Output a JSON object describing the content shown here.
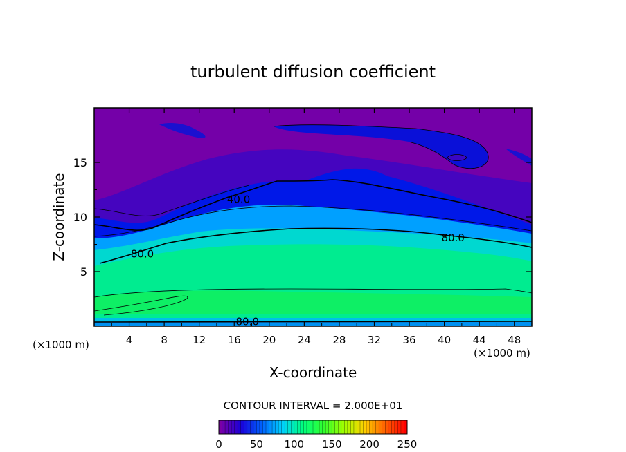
{
  "chart_data": {
    "type": "heatmap",
    "title": "turbulent diffusion coefficient",
    "xlabel": "X-coordinate",
    "ylabel": "Z-coordinate",
    "x_unit_left": "(×1000 m)",
    "x_unit_right": "(×1000 m)",
    "xlim": [
      0,
      50
    ],
    "ylim": [
      0,
      20
    ],
    "xticks": [
      4,
      8,
      12,
      16,
      20,
      24,
      28,
      32,
      36,
      40,
      44,
      48
    ],
    "yticks": [
      5,
      10,
      15
    ],
    "contour_interval_text": "CONTOUR INTERVAL = 2.000E+01",
    "contour_labels": [
      {
        "text": "40.0",
        "x": 16.5,
        "z": 11.6
      },
      {
        "text": "80.0",
        "x": 5.5,
        "z": 6.6
      },
      {
        "text": "80.0",
        "x": 41.0,
        "z": 8.1
      },
      {
        "text": "80.0",
        "x": 17.5,
        "z": 0.4
      }
    ],
    "colorbar": {
      "min": 0,
      "max": 250,
      "ticks": [
        0,
        50,
        100,
        150,
        200,
        250
      ],
      "colors": [
        "#7a00a6",
        "#1a00d8",
        "#0060ff",
        "#00d0ff",
        "#00ff80",
        "#30ff30",
        "#a0ff00",
        "#ffd000",
        "#ff6000",
        "#ff0000"
      ]
    },
    "field_colors": {
      "background_low": "#7400a8",
      "mid": "#0010e0",
      "upper_cyan": "#00a8ff",
      "core": "#00f080",
      "bottom_band": "#00c8e8"
    }
  }
}
